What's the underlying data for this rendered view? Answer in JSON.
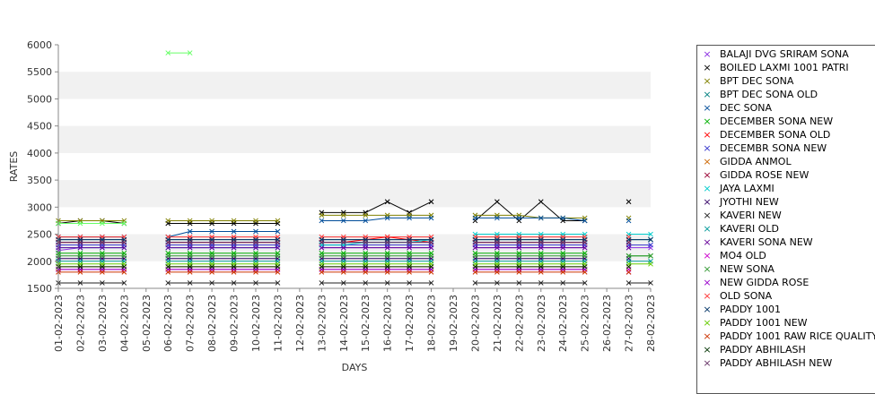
{
  "chart_data": {
    "type": "line",
    "title": "",
    "xlabel": "DAYS",
    "ylabel": "RATES",
    "ylim": [
      1500,
      6000
    ],
    "yticks": [
      1500,
      2000,
      2500,
      3000,
      3500,
      4000,
      4500,
      5000,
      5500,
      6000
    ],
    "grid": "alternating horizontal bands",
    "legend_placement": "right",
    "categories": [
      "01-02-2023",
      "02-02-2023",
      "03-02-2023",
      "04-02-2023",
      "05-02-2023",
      "06-02-2023",
      "07-02-2023",
      "08-02-2023",
      "09-02-2023",
      "10-02-2023",
      "11-02-2023",
      "12-02-2023",
      "13-02-2023",
      "14-02-2023",
      "15-02-2023",
      "16-02-2023",
      "17-02-2023",
      "18-02-2023",
      "19-02-2023",
      "20-02-2023",
      "21-02-2023",
      "22-02-2023",
      "23-02-2023",
      "24-02-2023",
      "25-02-2023",
      "26-02-2023",
      "27-02-2023",
      "28-02-2023"
    ],
    "series": [
      {
        "name": "BALAJI DVG SRIRAM SONA",
        "color": "#8a2be2",
        "values": [
          2200,
          2250,
          2250,
          2250,
          null,
          2250,
          2250,
          2250,
          2250,
          2250,
          2250,
          null,
          2250,
          2250,
          2250,
          2250,
          2250,
          2250,
          null,
          2250,
          2250,
          2250,
          2250,
          2250,
          2250,
          null,
          2250,
          2250
        ]
      },
      {
        "name": "BOILED LAXMI 1001 PATRI",
        "color": "#000000",
        "values": [
          2700,
          2750,
          2750,
          2700,
          null,
          2700,
          2700,
          2700,
          2700,
          2700,
          2700,
          null,
          2900,
          2900,
          2900,
          3100,
          2900,
          3100,
          null,
          2750,
          3100,
          2750,
          3100,
          2750,
          2750,
          null,
          3100,
          null
        ]
      },
      {
        "name": "BPT DEC SONA",
        "color": "#808000",
        "values": [
          2750,
          2750,
          2750,
          2750,
          null,
          2750,
          2750,
          2750,
          2750,
          2750,
          2750,
          null,
          2850,
          2850,
          2850,
          2850,
          2850,
          2850,
          null,
          2850,
          2850,
          2850,
          2800,
          2800,
          2800,
          null,
          2800,
          null
        ]
      },
      {
        "name": "BPT DEC SONA OLD",
        "color": "#008080",
        "values": [
          2400,
          2400,
          2400,
          2400,
          null,
          2400,
          2400,
          2400,
          2400,
          2400,
          2400,
          null,
          2400,
          2400,
          2400,
          2400,
          2400,
          2400,
          null,
          2400,
          2400,
          2400,
          2400,
          2400,
          2400,
          null,
          2400,
          2400
        ]
      },
      {
        "name": "DEC SONA",
        "color": "#004c99",
        "values": [
          2450,
          2450,
          2450,
          2450,
          null,
          2450,
          2550,
          2550,
          2550,
          2550,
          2550,
          null,
          2750,
          2750,
          2750,
          2800,
          2800,
          2800,
          null,
          2800,
          2800,
          2800,
          2800,
          2800,
          2750,
          null,
          2750,
          null
        ]
      },
      {
        "name": "DECEMBER SONA NEW",
        "color": "#00b000",
        "values": [
          2150,
          2150,
          2150,
          2150,
          null,
          2150,
          2150,
          2150,
          2150,
          2150,
          2150,
          null,
          2150,
          2150,
          2150,
          2150,
          2150,
          2150,
          null,
          2150,
          2150,
          2150,
          2150,
          2150,
          2150,
          null,
          2100,
          2100
        ]
      },
      {
        "name": "DECEMBER SONA OLD",
        "color": "#ff0000",
        "values": [
          2350,
          2350,
          2350,
          2350,
          null,
          2350,
          2350,
          2350,
          2350,
          2350,
          2350,
          null,
          2350,
          2350,
          2400,
          2450,
          2400,
          2350,
          null,
          2350,
          2350,
          2350,
          2350,
          2350,
          2350,
          null,
          2350,
          null
        ]
      },
      {
        "name": "DECEMBR SONA NEW",
        "color": "#3333cc",
        "values": [
          2300,
          2300,
          2300,
          2300,
          null,
          2300,
          2300,
          2300,
          2300,
          2300,
          2300,
          null,
          2300,
          2300,
          2300,
          2300,
          2300,
          2300,
          null,
          2300,
          2300,
          2300,
          2300,
          2300,
          2300,
          null,
          2300,
          2300
        ]
      },
      {
        "name": "GIDDA ANMOL",
        "color": "#cc6600",
        "values": [
          1900,
          1900,
          1900,
          1900,
          null,
          1900,
          1900,
          1900,
          1900,
          1900,
          1900,
          null,
          1900,
          1900,
          1900,
          1900,
          1900,
          1900,
          null,
          1900,
          1900,
          1900,
          1900,
          1900,
          1900,
          null,
          1900,
          null
        ]
      },
      {
        "name": "GIDDA ROSE NEW",
        "color": "#990033",
        "values": [
          2350,
          2350,
          2350,
          2350,
          null,
          2350,
          2350,
          2350,
          2350,
          2350,
          2350,
          null,
          2350,
          2350,
          2350,
          2350,
          2350,
          2350,
          null,
          2350,
          2350,
          2350,
          2350,
          2350,
          2350,
          null,
          2350,
          null
        ]
      },
      {
        "name": "JAYA LAXMI",
        "color": "#00cccc",
        "values": [
          2250,
          2250,
          2250,
          2250,
          null,
          2250,
          2250,
          2250,
          2250,
          2250,
          2250,
          null,
          2300,
          2300,
          2350,
          2350,
          2350,
          2400,
          null,
          2500,
          2500,
          2500,
          2500,
          2500,
          2500,
          null,
          2500,
          2500
        ]
      },
      {
        "name": "JYOTHI NEW",
        "color": "#330066",
        "values": [
          2050,
          2050,
          2050,
          2050,
          null,
          2050,
          2050,
          2050,
          2050,
          2050,
          2050,
          null,
          2050,
          2050,
          2050,
          2050,
          2050,
          2050,
          null,
          2050,
          2050,
          2050,
          2050,
          2050,
          2050,
          null,
          2050,
          null
        ]
      },
      {
        "name": "KAVERI NEW",
        "color": "#222222",
        "values": [
          1600,
          1600,
          1600,
          1600,
          null,
          1600,
          1600,
          1600,
          1600,
          1600,
          1600,
          null,
          1600,
          1600,
          1600,
          1600,
          1600,
          1600,
          null,
          1600,
          1600,
          1600,
          1600,
          1600,
          1600,
          null,
          1600,
          1600
        ]
      },
      {
        "name": "KAVERI OLD",
        "color": "#009999",
        "values": [
          2000,
          2000,
          2000,
          2000,
          null,
          2000,
          2000,
          2000,
          2000,
          2000,
          2000,
          null,
          2000,
          2000,
          2000,
          2000,
          2000,
          2000,
          null,
          2000,
          2000,
          2000,
          2000,
          2000,
          2000,
          null,
          2000,
          2000
        ]
      },
      {
        "name": "KAVERI SONA NEW",
        "color": "#660099",
        "values": [
          2250,
          2250,
          2250,
          2250,
          null,
          2250,
          2250,
          2250,
          2250,
          2250,
          2250,
          null,
          2250,
          2250,
          2250,
          2250,
          2250,
          2250,
          null,
          2250,
          2250,
          2250,
          2250,
          2250,
          2250,
          null,
          2250,
          null
        ]
      },
      {
        "name": "MO4 OLD",
        "color": "#cc00cc",
        "values": [
          1850,
          1850,
          1850,
          1850,
          null,
          1850,
          1850,
          1850,
          1850,
          1850,
          1850,
          null,
          1850,
          1850,
          1850,
          1850,
          1850,
          1850,
          null,
          1850,
          1850,
          1850,
          1850,
          1850,
          1850,
          null,
          1850,
          null
        ]
      },
      {
        "name": "NEW  SONA",
        "color": "#339933",
        "values": [
          2100,
          2100,
          2100,
          2100,
          null,
          2100,
          2100,
          2100,
          2100,
          2100,
          2100,
          null,
          2100,
          2100,
          2100,
          2100,
          2100,
          2100,
          null,
          2100,
          2100,
          2100,
          2100,
          2100,
          2100,
          null,
          2100,
          2100
        ]
      },
      {
        "name": "NEW GIDDA ROSE",
        "color": "#9900cc",
        "values": [
          1850,
          1850,
          1850,
          1850,
          null,
          1850,
          1850,
          1850,
          1850,
          1850,
          1850,
          null,
          1850,
          1850,
          1850,
          1850,
          1850,
          1850,
          null,
          1850,
          1850,
          1850,
          1850,
          1850,
          1850,
          null,
          1800,
          null
        ]
      },
      {
        "name": "OLD SONA",
        "color": "#ff3333",
        "values": [
          2450,
          2450,
          2450,
          2450,
          null,
          2450,
          2450,
          2450,
          2450,
          2450,
          2450,
          null,
          2450,
          2450,
          2450,
          2450,
          2450,
          2450,
          null,
          2450,
          2450,
          2450,
          2450,
          2450,
          2450,
          null,
          2450,
          null
        ]
      },
      {
        "name": "PADDY 1001",
        "color": "#003366",
        "values": [
          2400,
          2400,
          2400,
          2400,
          null,
          2400,
          2400,
          2400,
          2400,
          2400,
          2400,
          null,
          2400,
          2400,
          2400,
          2400,
          2400,
          2400,
          null,
          2400,
          2400,
          2400,
          2400,
          2400,
          2400,
          null,
          2400,
          2400
        ]
      },
      {
        "name": "PADDY 1001 NEW",
        "color": "#66cc00",
        "values": [
          1950,
          1950,
          1950,
          1950,
          null,
          1950,
          1950,
          1950,
          1950,
          1950,
          1950,
          null,
          1950,
          1950,
          1950,
          1950,
          1950,
          1950,
          null,
          1950,
          1950,
          1950,
          1950,
          1950,
          1950,
          null,
          1950,
          1950
        ]
      },
      {
        "name": "PADDY 1001 RAW RICE QUALITY",
        "color": "#cc3300",
        "values": [
          1800,
          1800,
          1800,
          1800,
          null,
          1800,
          1800,
          1800,
          1800,
          1800,
          1800,
          null,
          1800,
          1800,
          1800,
          1800,
          1800,
          1800,
          null,
          1800,
          1800,
          1800,
          1800,
          1800,
          1800,
          null,
          1800,
          null
        ]
      },
      {
        "name": "PADDY ABHILASH",
        "color": "#003300",
        "values": [
          1900,
          1900,
          1900,
          1900,
          null,
          1900,
          1900,
          1900,
          1900,
          1900,
          1900,
          null,
          1900,
          1900,
          1900,
          1900,
          1900,
          1900,
          null,
          1900,
          1900,
          1900,
          1900,
          1900,
          1900,
          null,
          1900,
          null
        ]
      },
      {
        "name": "PADDY ABHILASH NEW",
        "color": "#663366",
        "values": [
          2350,
          2350,
          2350,
          2350,
          null,
          2350,
          2350,
          2350,
          2350,
          2350,
          2350,
          null,
          2350,
          2350,
          2350,
          2350,
          2350,
          2350,
          null,
          2350,
          2350,
          2350,
          2350,
          2350,
          2350,
          null,
          2350,
          null
        ]
      },
      {
        "name": "",
        "color": "#66ff66",
        "values": [
          2700,
          2700,
          2700,
          2700,
          null,
          5850,
          5850,
          null,
          null,
          null,
          null,
          null,
          null,
          null,
          null,
          null,
          null,
          null,
          null,
          null,
          null,
          null,
          null,
          null,
          null,
          null,
          null,
          null
        ]
      }
    ]
  }
}
